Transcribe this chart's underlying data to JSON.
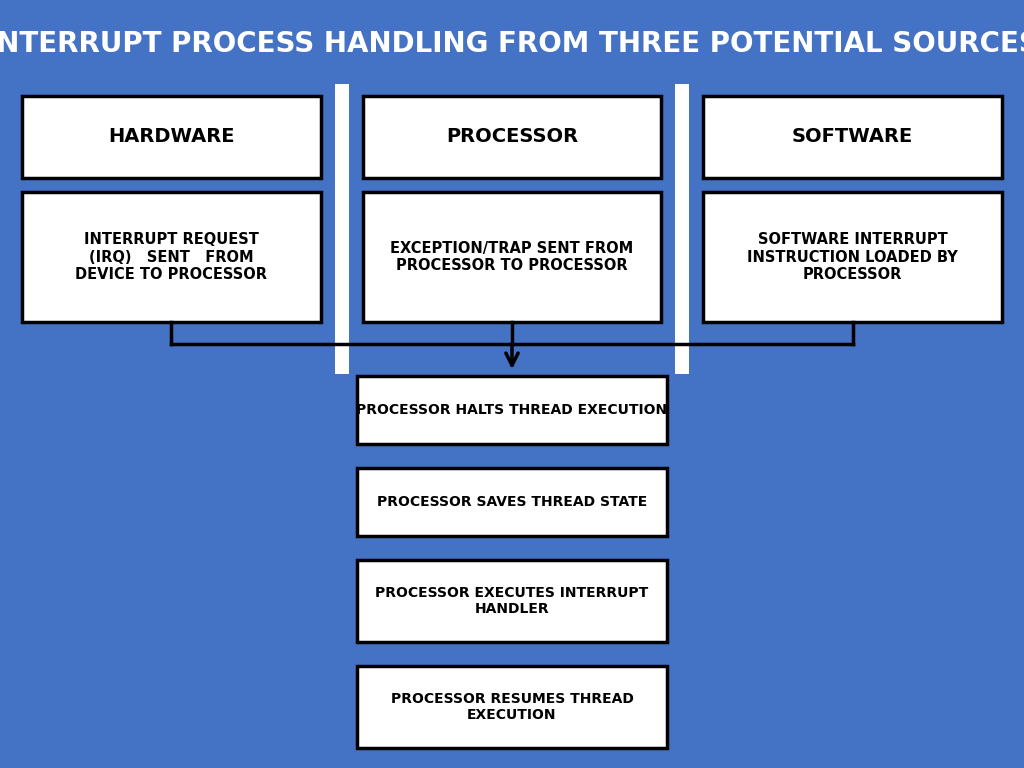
{
  "title": "INTERRUPT PROCESS HANDLING FROM THREE POTENTIAL SOURCES",
  "title_color": "#FFFFFF",
  "title_bg": "#4472C4",
  "bg_color": "#4472C4",
  "box_bg": "#FFFFFF",
  "box_border": "#000000",
  "text_color": "#000000",
  "col_divider_color": "#FFFFFF",
  "top_boxes": [
    "HARDWARE",
    "PROCESSOR",
    "SOFTWARE"
  ],
  "mid_boxes": [
    "INTERRUPT REQUEST\n(IRQ)   SENT   FROM\nDEVICE TO PROCESSOR",
    "EXCEPTION/TRAP SENT FROM\nPROCESSOR TO PROCESSOR",
    "SOFTWARE INTERRUPT\nINSTRUCTION LOADED BY\nPROCESSOR"
  ],
  "bottom_boxes": [
    "PROCESSOR HALTS THREAD EXECUTION",
    "PROCESSOR SAVES THREAD STATE",
    "PROCESSOR EXECUTES INTERRUPT\nHANDLER",
    "PROCESSOR RESUMES THREAD\nEXECUTION"
  ],
  "figsize": [
    10.24,
    7.68
  ],
  "dpi": 100
}
